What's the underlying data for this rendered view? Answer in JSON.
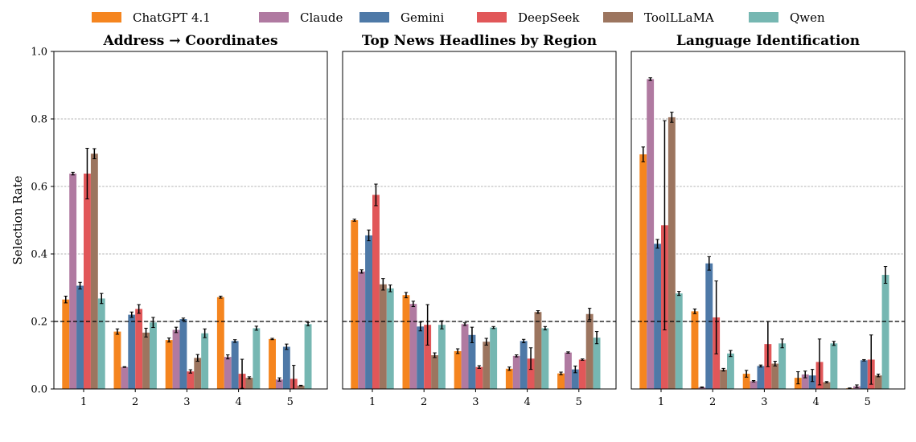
{
  "legend": {
    "entries": [
      {
        "name": "ChatGPT 4.1",
        "color": "#f5851f"
      },
      {
        "name": "Claude",
        "color": "#b07aa1"
      },
      {
        "name": "Gemini",
        "color": "#4e79a7"
      },
      {
        "name": "DeepSeek",
        "color": "#e15759"
      },
      {
        "name": "ToolLLaMA",
        "color": "#9c755f"
      },
      {
        "name": "Qwen",
        "color": "#76b7b2"
      }
    ],
    "placement": "top-center"
  },
  "chart_data": [
    {
      "type": "bar",
      "title": "Address → Coordinates",
      "ylabel": "Selection Rate",
      "xlabel": "",
      "ylim": [
        0,
        1.0
      ],
      "yticks": [
        "0.0",
        "0.2",
        "0.4",
        "0.6",
        "0.8",
        "1.0"
      ],
      "grid": true,
      "baseline": 0.2,
      "categories": [
        "1",
        "2",
        "3",
        "4",
        "5"
      ],
      "series": [
        {
          "name": "ChatGPT 4.1",
          "values": [
            0.265,
            0.17,
            0.145,
            0.272,
            0.148
          ],
          "errors": [
            0.01,
            0.008,
            0.006,
            0.003,
            0.002
          ]
        },
        {
          "name": "Claude",
          "values": [
            0.638,
            0.065,
            0.175,
            0.095,
            0.028
          ],
          "errors": [
            0.004,
            0.001,
            0.008,
            0.006,
            0.005
          ]
        },
        {
          "name": "Gemini",
          "values": [
            0.306,
            0.22,
            0.207,
            0.142,
            0.125
          ],
          "errors": [
            0.01,
            0.008,
            0.003,
            0.004,
            0.008
          ]
        },
        {
          "name": "DeepSeek",
          "values": [
            0.638,
            0.237,
            0.052,
            0.045,
            0.03
          ],
          "errors": [
            0.075,
            0.013,
            0.005,
            0.043,
            0.04
          ]
        },
        {
          "name": "ToolLLaMA",
          "values": [
            0.697,
            0.167,
            0.092,
            0.033,
            0.01
          ],
          "errors": [
            0.015,
            0.013,
            0.01,
            0.003,
            0.001
          ]
        },
        {
          "name": "Qwen",
          "values": [
            0.268,
            0.197,
            0.165,
            0.18,
            0.192
          ],
          "errors": [
            0.015,
            0.015,
            0.013,
            0.006,
            0.005
          ]
        }
      ]
    },
    {
      "type": "bar",
      "title": "Top News Headlines by Region",
      "ylabel": "",
      "xlabel": "",
      "ylim": [
        0,
        1.0
      ],
      "yticks": [],
      "grid": true,
      "baseline": 0.2,
      "categories": [
        "1",
        "2",
        "3",
        "4",
        "5"
      ],
      "series": [
        {
          "name": "ChatGPT 4.1",
          "values": [
            0.5,
            0.278,
            0.112,
            0.06,
            0.046
          ],
          "errors": [
            0.003,
            0.008,
            0.007,
            0.005,
            0.004
          ]
        },
        {
          "name": "Claude",
          "values": [
            0.348,
            0.252,
            0.192,
            0.098,
            0.108
          ],
          "errors": [
            0.005,
            0.008,
            0.004,
            0.003,
            0.002
          ]
        },
        {
          "name": "Gemini",
          "values": [
            0.455,
            0.185,
            0.16,
            0.142,
            0.058
          ],
          "errors": [
            0.016,
            0.013,
            0.023,
            0.005,
            0.01
          ]
        },
        {
          "name": "DeepSeek",
          "values": [
            0.575,
            0.19,
            0.065,
            0.09,
            0.087
          ],
          "errors": [
            0.032,
            0.06,
            0.004,
            0.032,
            0.002
          ]
        },
        {
          "name": "ToolLLaMA",
          "values": [
            0.31,
            0.1,
            0.14,
            0.228,
            0.222
          ],
          "errors": [
            0.017,
            0.007,
            0.01,
            0.004,
            0.017
          ]
        },
        {
          "name": "Qwen",
          "values": [
            0.298,
            0.19,
            0.182,
            0.18,
            0.152
          ],
          "errors": [
            0.01,
            0.012,
            0.003,
            0.005,
            0.018
          ]
        }
      ]
    },
    {
      "type": "bar",
      "title": "Language Identification",
      "ylabel": "",
      "xlabel": "",
      "ylim": [
        0,
        1.0
      ],
      "yticks": [],
      "grid": true,
      "baseline": 0.2,
      "categories": [
        "1",
        "2",
        "3",
        "4",
        "5"
      ],
      "series": [
        {
          "name": "ChatGPT 4.1",
          "values": [
            0.695,
            0.23,
            0.045,
            0.033,
            0.002
          ],
          "errors": [
            0.022,
            0.007,
            0.01,
            0.018,
            0.001
          ]
        },
        {
          "name": "Claude",
          "values": [
            0.918,
            0.005,
            0.023,
            0.043,
            0.008
          ],
          "errors": [
            0.004,
            0.001,
            0.002,
            0.01,
            0.004
          ]
        },
        {
          "name": "Gemini",
          "values": [
            0.43,
            0.372,
            0.068,
            0.04,
            0.085
          ],
          "errors": [
            0.013,
            0.02,
            0.003,
            0.018,
            0.002
          ]
        },
        {
          "name": "DeepSeek",
          "values": [
            0.485,
            0.212,
            0.133,
            0.08,
            0.087
          ],
          "errors": [
            0.31,
            0.108,
            0.067,
            0.068,
            0.073
          ]
        },
        {
          "name": "ToolLLaMA",
          "values": [
            0.805,
            0.057,
            0.075,
            0.02,
            0.04
          ],
          "errors": [
            0.015,
            0.004,
            0.007,
            0.002,
            0.004
          ]
        },
        {
          "name": "Qwen",
          "values": [
            0.283,
            0.105,
            0.135,
            0.135,
            0.338
          ],
          "errors": [
            0.006,
            0.009,
            0.013,
            0.006,
            0.025
          ]
        }
      ]
    }
  ]
}
